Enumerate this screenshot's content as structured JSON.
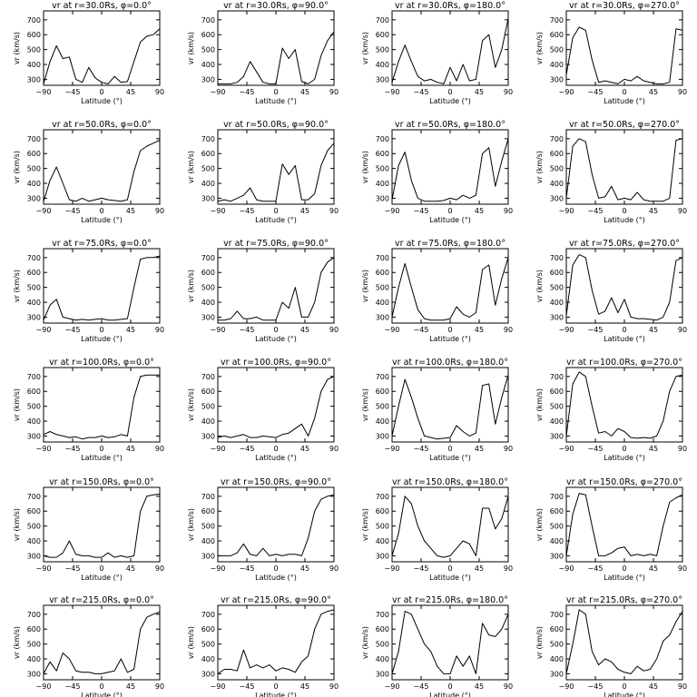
{
  "chart_data": {
    "type": "line",
    "xlim": [
      -90,
      90
    ],
    "ylim": [
      260,
      760
    ],
    "xticks": [
      -90,
      -45,
      0,
      45,
      90
    ],
    "yticks": [
      300,
      400,
      500,
      600,
      700
    ],
    "xlabel": "Latitude (°)",
    "ylabel": "vr (km/s)",
    "x": [
      -90,
      -80,
      -70,
      -60,
      -50,
      -40,
      -30,
      -20,
      -10,
      0,
      10,
      20,
      30,
      40,
      50,
      60,
      70,
      80,
      90
    ],
    "panels": [
      {
        "title": "vr at r=30.0Rs, φ=0.0°",
        "y": [
          270,
          420,
          525,
          440,
          450,
          300,
          280,
          380,
          310,
          280,
          270,
          320,
          280,
          285,
          420,
          550,
          590,
          600,
          640
        ]
      },
      {
        "title": "vr at r=30.0Rs, φ=90.0°",
        "y": [
          270,
          270,
          270,
          280,
          320,
          420,
          350,
          280,
          270,
          270,
          510,
          440,
          500,
          285,
          270,
          300,
          460,
          560,
          620
        ]
      },
      {
        "title": "vr at r=30.0Rs, φ=180.0°",
        "y": [
          280,
          420,
          530,
          420,
          320,
          290,
          300,
          280,
          270,
          380,
          290,
          400,
          290,
          300,
          560,
          600,
          380,
          500,
          710
        ]
      },
      {
        "title": "vr at r=30.0Rs, φ=270.0°",
        "y": [
          330,
          580,
          650,
          630,
          430,
          280,
          290,
          280,
          270,
          300,
          290,
          320,
          290,
          280,
          270,
          270,
          280,
          640,
          630
        ]
      },
      {
        "title": "vr at r=50.0Rs, φ=0.0°",
        "y": [
          280,
          420,
          510,
          400,
          290,
          280,
          300,
          280,
          290,
          300,
          290,
          285,
          280,
          290,
          480,
          620,
          650,
          670,
          690
        ]
      },
      {
        "title": "vr at r=50.0Rs, φ=90.0°",
        "y": [
          280,
          290,
          280,
          300,
          320,
          370,
          290,
          280,
          280,
          280,
          530,
          460,
          520,
          290,
          290,
          330,
          520,
          620,
          670
        ]
      },
      {
        "title": "vr at r=50.0Rs, φ=180.0°",
        "y": [
          290,
          520,
          610,
          420,
          300,
          280,
          280,
          280,
          285,
          300,
          290,
          320,
          300,
          320,
          600,
          640,
          380,
          550,
          700
        ]
      },
      {
        "title": "vr at r=50.0Rs, φ=270.0°",
        "y": [
          300,
          650,
          700,
          680,
          460,
          300,
          310,
          380,
          290,
          300,
          290,
          340,
          290,
          280,
          280,
          280,
          300,
          690,
          700
        ]
      },
      {
        "title": "vr at r=75.0Rs, φ=0.0°",
        "y": [
          280,
          380,
          420,
          300,
          290,
          280,
          285,
          280,
          285,
          290,
          280,
          280,
          285,
          290,
          500,
          690,
          700,
          700,
          710
        ]
      },
      {
        "title": "vr at r=75.0Rs, φ=90.0°",
        "y": [
          280,
          280,
          290,
          340,
          290,
          290,
          300,
          280,
          280,
          280,
          400,
          360,
          500,
          300,
          300,
          400,
          600,
          670,
          700
        ]
      },
      {
        "title": "vr at r=75.0Rs, φ=180.0°",
        "y": [
          300,
          500,
          660,
          500,
          350,
          290,
          280,
          280,
          280,
          290,
          370,
          320,
          300,
          330,
          620,
          650,
          380,
          560,
          700
        ]
      },
      {
        "title": "vr at r=75.0Rs, φ=270.0°",
        "y": [
          310,
          650,
          720,
          700,
          480,
          320,
          340,
          430,
          330,
          420,
          300,
          290,
          290,
          285,
          280,
          300,
          400,
          680,
          700
        ]
      },
      {
        "title": "vr at r=100.0Rs, φ=0.0°",
        "y": [
          310,
          330,
          310,
          300,
          290,
          295,
          280,
          290,
          290,
          300,
          290,
          295,
          310,
          300,
          560,
          700,
          710,
          710,
          710
        ]
      },
      {
        "title": "vr at r=100.0Rs, φ=90.0°",
        "y": [
          290,
          300,
          290,
          300,
          310,
          290,
          290,
          300,
          295,
          290,
          310,
          320,
          350,
          380,
          300,
          420,
          600,
          680,
          700
        ]
      },
      {
        "title": "vr at r=100.0Rs, φ=180.0°",
        "y": [
          300,
          500,
          680,
          560,
          420,
          300,
          290,
          280,
          285,
          290,
          370,
          330,
          300,
          320,
          640,
          650,
          380,
          560,
          710
        ]
      },
      {
        "title": "vr at r=100.0Rs, φ=270.0°",
        "y": [
          300,
          650,
          730,
          700,
          500,
          320,
          330,
          300,
          350,
          330,
          290,
          285,
          290,
          285,
          300,
          400,
          600,
          700,
          710
        ]
      },
      {
        "title": "vr at r=150.0Rs, φ=0.0°",
        "y": [
          300,
          290,
          290,
          320,
          400,
          310,
          300,
          300,
          290,
          290,
          320,
          290,
          300,
          290,
          300,
          600,
          700,
          710,
          715
        ]
      },
      {
        "title": "vr at r=150.0Rs, φ=90.0°",
        "y": [
          300,
          300,
          300,
          320,
          380,
          310,
          300,
          350,
          300,
          310,
          300,
          310,
          310,
          300,
          420,
          600,
          680,
          700,
          710
        ]
      },
      {
        "title": "vr at r=150.0Rs, φ=180.0°",
        "y": [
          300,
          450,
          700,
          650,
          500,
          400,
          350,
          300,
          290,
          300,
          350,
          400,
          380,
          300,
          620,
          620,
          480,
          550,
          700
        ]
      },
      {
        "title": "vr at r=150.0Rs, φ=270.0°",
        "y": [
          300,
          580,
          720,
          710,
          500,
          300,
          300,
          320,
          350,
          360,
          300,
          310,
          300,
          310,
          300,
          500,
          660,
          690,
          710
        ]
      },
      {
        "title": "vr at r=215.0Rs, φ=0.0°",
        "y": [
          300,
          380,
          320,
          440,
          400,
          320,
          310,
          310,
          300,
          300,
          310,
          320,
          400,
          310,
          330,
          600,
          680,
          700,
          715
        ]
      },
      {
        "title": "vr at r=215.0Rs, φ=90.0°",
        "y": [
          300,
          330,
          330,
          320,
          460,
          340,
          360,
          340,
          360,
          320,
          340,
          330,
          310,
          380,
          420,
          600,
          700,
          720,
          730
        ]
      },
      {
        "title": "vr at r=215.0Rs, φ=180.0°",
        "y": [
          300,
          450,
          720,
          700,
          600,
          500,
          450,
          350,
          300,
          300,
          420,
          350,
          420,
          300,
          640,
          560,
          550,
          600,
          700
        ]
      },
      {
        "title": "vr at r=215.0Rs, φ=270.0°",
        "y": [
          300,
          500,
          730,
          700,
          450,
          360,
          400,
          380,
          330,
          310,
          300,
          350,
          320,
          330,
          400,
          520,
          560,
          650,
          720
        ]
      }
    ]
  }
}
